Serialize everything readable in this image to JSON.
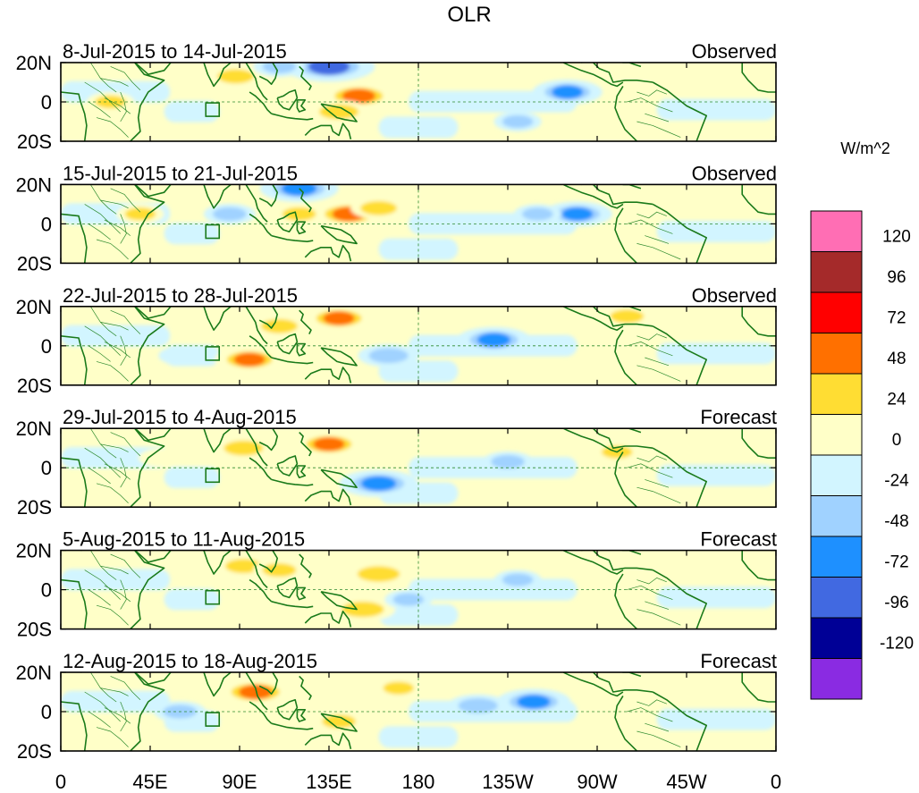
{
  "chart_data": {
    "type": "heatmap",
    "title": "OLR",
    "units": "W/m^2",
    "x_tick_labels": [
      "0",
      "45E",
      "90E",
      "135E",
      "180",
      "135W",
      "90W",
      "45W",
      "0"
    ],
    "y_tick_labels": [
      "20N",
      "0",
      "20S"
    ],
    "lat_range": [
      -20,
      20
    ],
    "lon_range": [
      0,
      360
    ],
    "colorbar": {
      "labels": [
        "120",
        "96",
        "72",
        "48",
        "24",
        "0",
        "-24",
        "-48",
        "-72",
        "-96",
        "-120"
      ],
      "bins": [
        {
          "range": "> 120",
          "color": "#ff6eb4"
        },
        {
          "range": "96 to 120",
          "color": "#a52a2a"
        },
        {
          "range": "72 to 96",
          "color": "#ff0000"
        },
        {
          "range": "48 to 72",
          "color": "#ff7000"
        },
        {
          "range": "24 to 48",
          "color": "#ffdd33"
        },
        {
          "range": "0 to 24",
          "color": "#ffffc8"
        },
        {
          "range": "-24 to 0",
          "color": "#d2f5ff"
        },
        {
          "range": "-48 to -24",
          "color": "#a0d2ff"
        },
        {
          "range": "-72 to -48",
          "color": "#1e90ff"
        },
        {
          "range": "-96 to -72",
          "color": "#4169e1"
        },
        {
          "range": "-120 to -96",
          "color": "#000096"
        },
        {
          "range": "< -120",
          "color": "#8a2be2"
        }
      ]
    },
    "panels": [
      {
        "date_range": "8-Jul-2015 to 14-Jul-2015",
        "label": "Observed",
        "anomalies": [
          {
            "lon": 150,
            "lat": 3,
            "value": 55
          },
          {
            "lon": 140,
            "lat": -5,
            "value": 40
          },
          {
            "lon": 88,
            "lat": 13,
            "value": 35
          },
          {
            "lon": 25,
            "lat": 0,
            "value": 25
          },
          {
            "lon": 135,
            "lat": 18,
            "value": -75
          },
          {
            "lon": 110,
            "lat": 18,
            "value": -30
          },
          {
            "lon": 255,
            "lat": 5,
            "value": -50
          },
          {
            "lon": 200,
            "lat": 0,
            "value": -20
          },
          {
            "lon": 230,
            "lat": -10,
            "value": -25
          }
        ]
      },
      {
        "date_range": "15-Jul-2015 to 21-Jul-2015",
        "label": "Observed",
        "anomalies": [
          {
            "lon": 145,
            "lat": 5,
            "value": 55
          },
          {
            "lon": 120,
            "lat": 5,
            "value": 30
          },
          {
            "lon": 160,
            "lat": 8,
            "value": 35
          },
          {
            "lon": 120,
            "lat": 18,
            "value": -60
          },
          {
            "lon": 85,
            "lat": 5,
            "value": -30
          },
          {
            "lon": 260,
            "lat": 5,
            "value": -50
          },
          {
            "lon": 240,
            "lat": 5,
            "value": -25
          },
          {
            "lon": 40,
            "lat": 5,
            "value": 25
          }
        ]
      },
      {
        "date_range": "22-Jul-2015 to 28-Jul-2015",
        "label": "Observed",
        "anomalies": [
          {
            "lon": 140,
            "lat": 14,
            "value": 50
          },
          {
            "lon": 110,
            "lat": 10,
            "value": 35
          },
          {
            "lon": 95,
            "lat": -7,
            "value": 50
          },
          {
            "lon": 218,
            "lat": 3,
            "value": -55
          },
          {
            "lon": 165,
            "lat": -5,
            "value": -40
          },
          {
            "lon": 285,
            "lat": 15,
            "value": 30
          },
          {
            "lon": 60,
            "lat": -5,
            "value": -20
          }
        ]
      },
      {
        "date_range": "29-Jul-2015 to 4-Aug-2015",
        "label": "Forecast",
        "anomalies": [
          {
            "lon": 135,
            "lat": 12,
            "value": 50
          },
          {
            "lon": 92,
            "lat": 10,
            "value": 40
          },
          {
            "lon": 160,
            "lat": -8,
            "value": -60
          },
          {
            "lon": 225,
            "lat": 3,
            "value": -30
          },
          {
            "lon": 50,
            "lat": 5,
            "value": 20
          },
          {
            "lon": 280,
            "lat": 8,
            "value": 25
          }
        ]
      },
      {
        "date_range": "5-Aug-2015 to 11-Aug-2015",
        "label": "Forecast",
        "anomalies": [
          {
            "lon": 160,
            "lat": 8,
            "value": 45
          },
          {
            "lon": 152,
            "lat": -10,
            "value": 45
          },
          {
            "lon": 92,
            "lat": 12,
            "value": 35
          },
          {
            "lon": 110,
            "lat": 10,
            "value": 30
          },
          {
            "lon": 230,
            "lat": 5,
            "value": -25
          },
          {
            "lon": 175,
            "lat": -5,
            "value": -25
          }
        ]
      },
      {
        "date_range": "12-Aug-2015 to 18-Aug-2015",
        "label": "Forecast",
        "anomalies": [
          {
            "lon": 98,
            "lat": 10,
            "value": 55
          },
          {
            "lon": 140,
            "lat": -5,
            "value": 30
          },
          {
            "lon": 60,
            "lat": 0,
            "value": -30
          },
          {
            "lon": 210,
            "lat": 3,
            "value": -40
          },
          {
            "lon": 238,
            "lat": 5,
            "value": -55
          },
          {
            "lon": 170,
            "lat": 12,
            "value": 25
          }
        ]
      }
    ]
  }
}
